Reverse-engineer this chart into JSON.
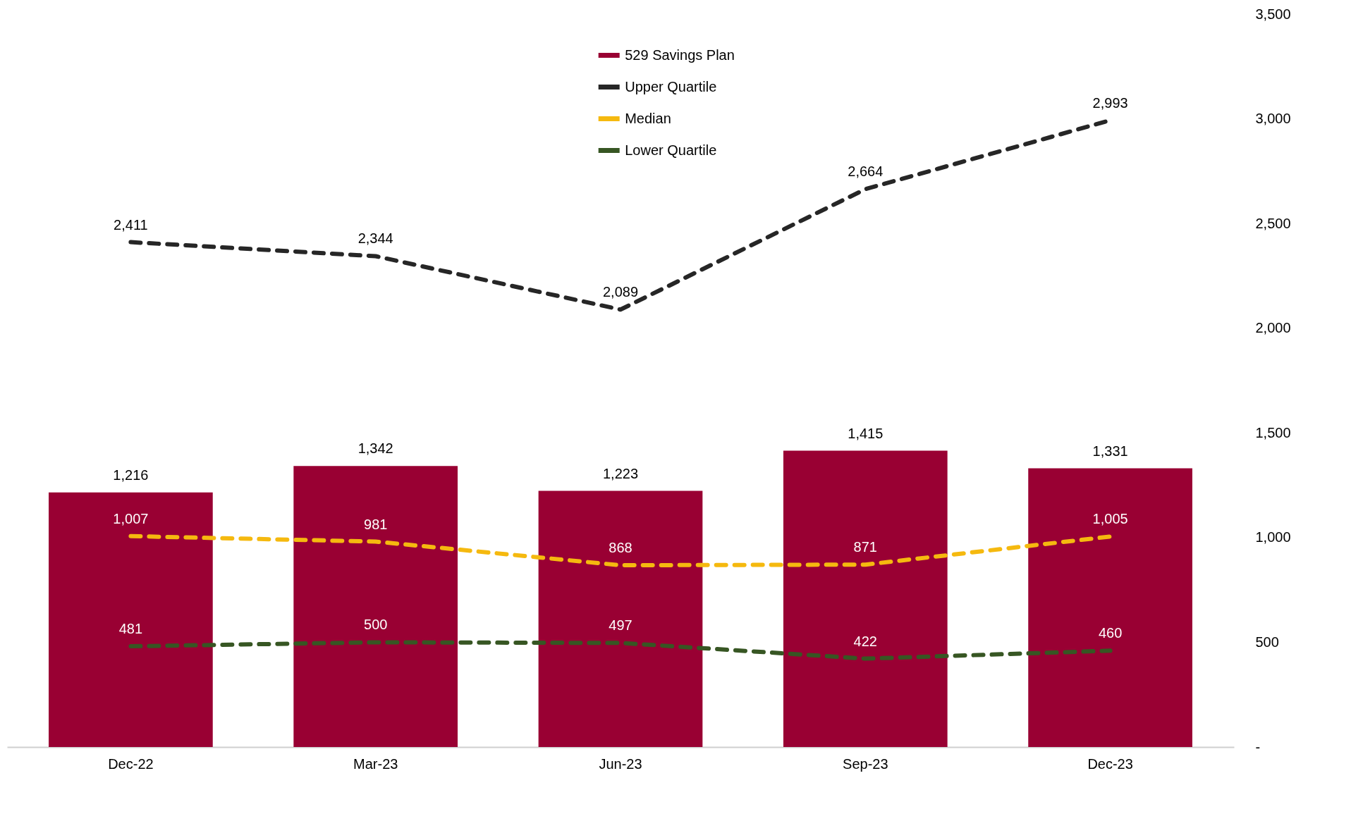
{
  "chart_data": {
    "type": "bar",
    "categories": [
      "Dec-22",
      "Mar-23",
      "Jun-23",
      "Sep-23",
      "Dec-23"
    ],
    "series": [
      {
        "name": "529 Savings Plan",
        "color": "#990033",
        "values": [
          1216,
          1342,
          1223,
          1415,
          1331
        ],
        "value_labels": [
          "1,216",
          "1,342",
          "1,223",
          "1,415",
          "1,331"
        ]
      },
      {
        "name": "Upper Quartile",
        "type": "line",
        "color": "#262626",
        "values": [
          2411,
          2344,
          2089,
          2664,
          2993
        ],
        "value_labels": [
          "2,411",
          "2,344",
          "2,089",
          "2,664",
          "2,993"
        ]
      },
      {
        "name": "Median",
        "type": "line",
        "color": "#f5b90f",
        "values": [
          1007,
          981,
          868,
          871,
          1005
        ],
        "value_labels": [
          "1,007",
          "981",
          "868",
          "871",
          "1,005"
        ]
      },
      {
        "name": "Lower Quartile",
        "type": "line",
        "color": "#375623",
        "values": [
          481,
          500,
          497,
          422,
          460
        ],
        "value_labels": [
          "481",
          "500",
          "497",
          "422",
          "460"
        ]
      }
    ],
    "ylim": [
      0,
      3500
    ],
    "yticks": [
      {
        "value": 0,
        "label": "-"
      },
      500,
      {
        "value": 1000,
        "label": "1,000"
      },
      {
        "value": 1500,
        "label": "1,500"
      },
      {
        "value": 2000,
        "label": "2,000"
      },
      {
        "value": 2500,
        "label": "2,500"
      },
      {
        "value": 3000,
        "label": "3,000"
      },
      {
        "value": 3500,
        "label": "3,500"
      }
    ],
    "legend": "top",
    "line_style": "dashed"
  }
}
